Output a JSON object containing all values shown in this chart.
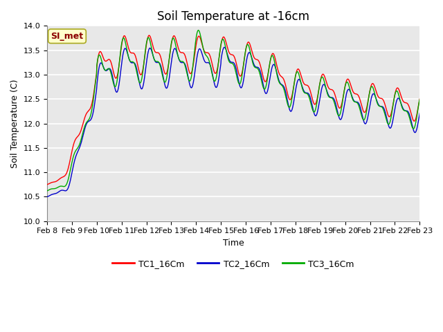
{
  "title": "Soil Temperature at -16cm",
  "xlabel": "Time",
  "ylabel": "Soil Temperature (C)",
  "ylim": [
    10.0,
    14.0
  ],
  "yticks": [
    10.0,
    10.5,
    11.0,
    11.5,
    12.0,
    12.5,
    13.0,
    13.5,
    14.0
  ],
  "colors": {
    "TC1": "#ff0000",
    "TC2": "#0000cc",
    "TC3": "#00aa00"
  },
  "legend_labels": [
    "TC1_16Cm",
    "TC2_16Cm",
    "TC3_16Cm"
  ],
  "annotation_text": "SI_met",
  "annotation_color": "#8b0000",
  "annotation_bg": "#ffffcc",
  "annotation_border": "#aaa820",
  "plot_bg": "#e8e8e8",
  "fig_bg": "#ffffff",
  "grid_color": "#ffffff",
  "xtick_labels": [
    "Feb 8",
    "Feb 9",
    "Feb 10",
    "Feb 11",
    "Feb 12",
    "Feb 13",
    "Feb 14",
    "Feb 15",
    "Feb 16",
    "Feb 17",
    "Feb 18",
    "Feb 19",
    "Feb 20",
    "Feb 21",
    "Feb 22",
    "Feb 23"
  ],
  "num_points": 1500,
  "title_fontsize": 12,
  "linewidth": 1.0
}
